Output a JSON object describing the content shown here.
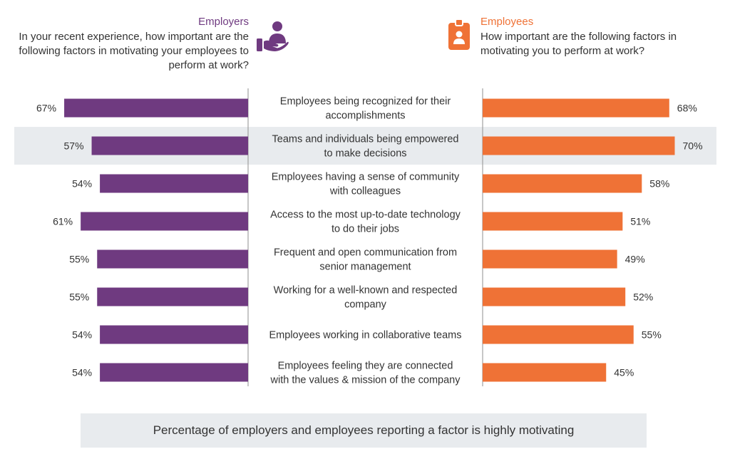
{
  "header": {
    "employers_title": "Employers",
    "employers_question": "In your recent experience, how important are the following factors in motivating your employees to perform at work?",
    "employees_title": "Employees",
    "employees_question": "How important are the following factors in motivating you to perform at work?",
    "employers_icon": "hand-holding-person-icon",
    "employees_icon": "id-badge-icon"
  },
  "colors": {
    "employers": "#6f3a80",
    "employees": "#ef7236",
    "highlight_row": "#e8ebee",
    "divider": "#8f8f8f"
  },
  "chart_data": {
    "type": "bar",
    "categories": [
      [
        "Employees being recognized for their",
        "accomplishments"
      ],
      [
        "Teams and individuals being empowered",
        "to make decisions"
      ],
      [
        "Employees having a sense of community",
        "with colleagues"
      ],
      [
        "Access to the most up-to-date technology",
        "to do their jobs"
      ],
      [
        "Frequent and open communication from",
        "senior management"
      ],
      [
        "Working for a well-known and respected",
        "company"
      ],
      [
        "Employees working in collaborative teams"
      ],
      [
        "Employees feeling they are connected",
        "with the values & mission of the company"
      ]
    ],
    "series": [
      {
        "name": "Employers",
        "values": [
          67,
          57,
          54,
          61,
          55,
          55,
          54,
          54
        ],
        "labels": [
          "67%",
          "57%",
          "54%",
          "61%",
          "55%",
          "55%",
          "54%",
          "54%"
        ]
      },
      {
        "name": "Employees",
        "values": [
          68,
          70,
          58,
          51,
          49,
          52,
          55,
          45
        ],
        "labels": [
          "68%",
          "70%",
          "58%",
          "51%",
          "49%",
          "52%",
          "55%",
          "45%"
        ]
      }
    ],
    "highlighted_row": 1,
    "caption": "Percentage of employers and employees reporting a factor is highly motivating"
  }
}
